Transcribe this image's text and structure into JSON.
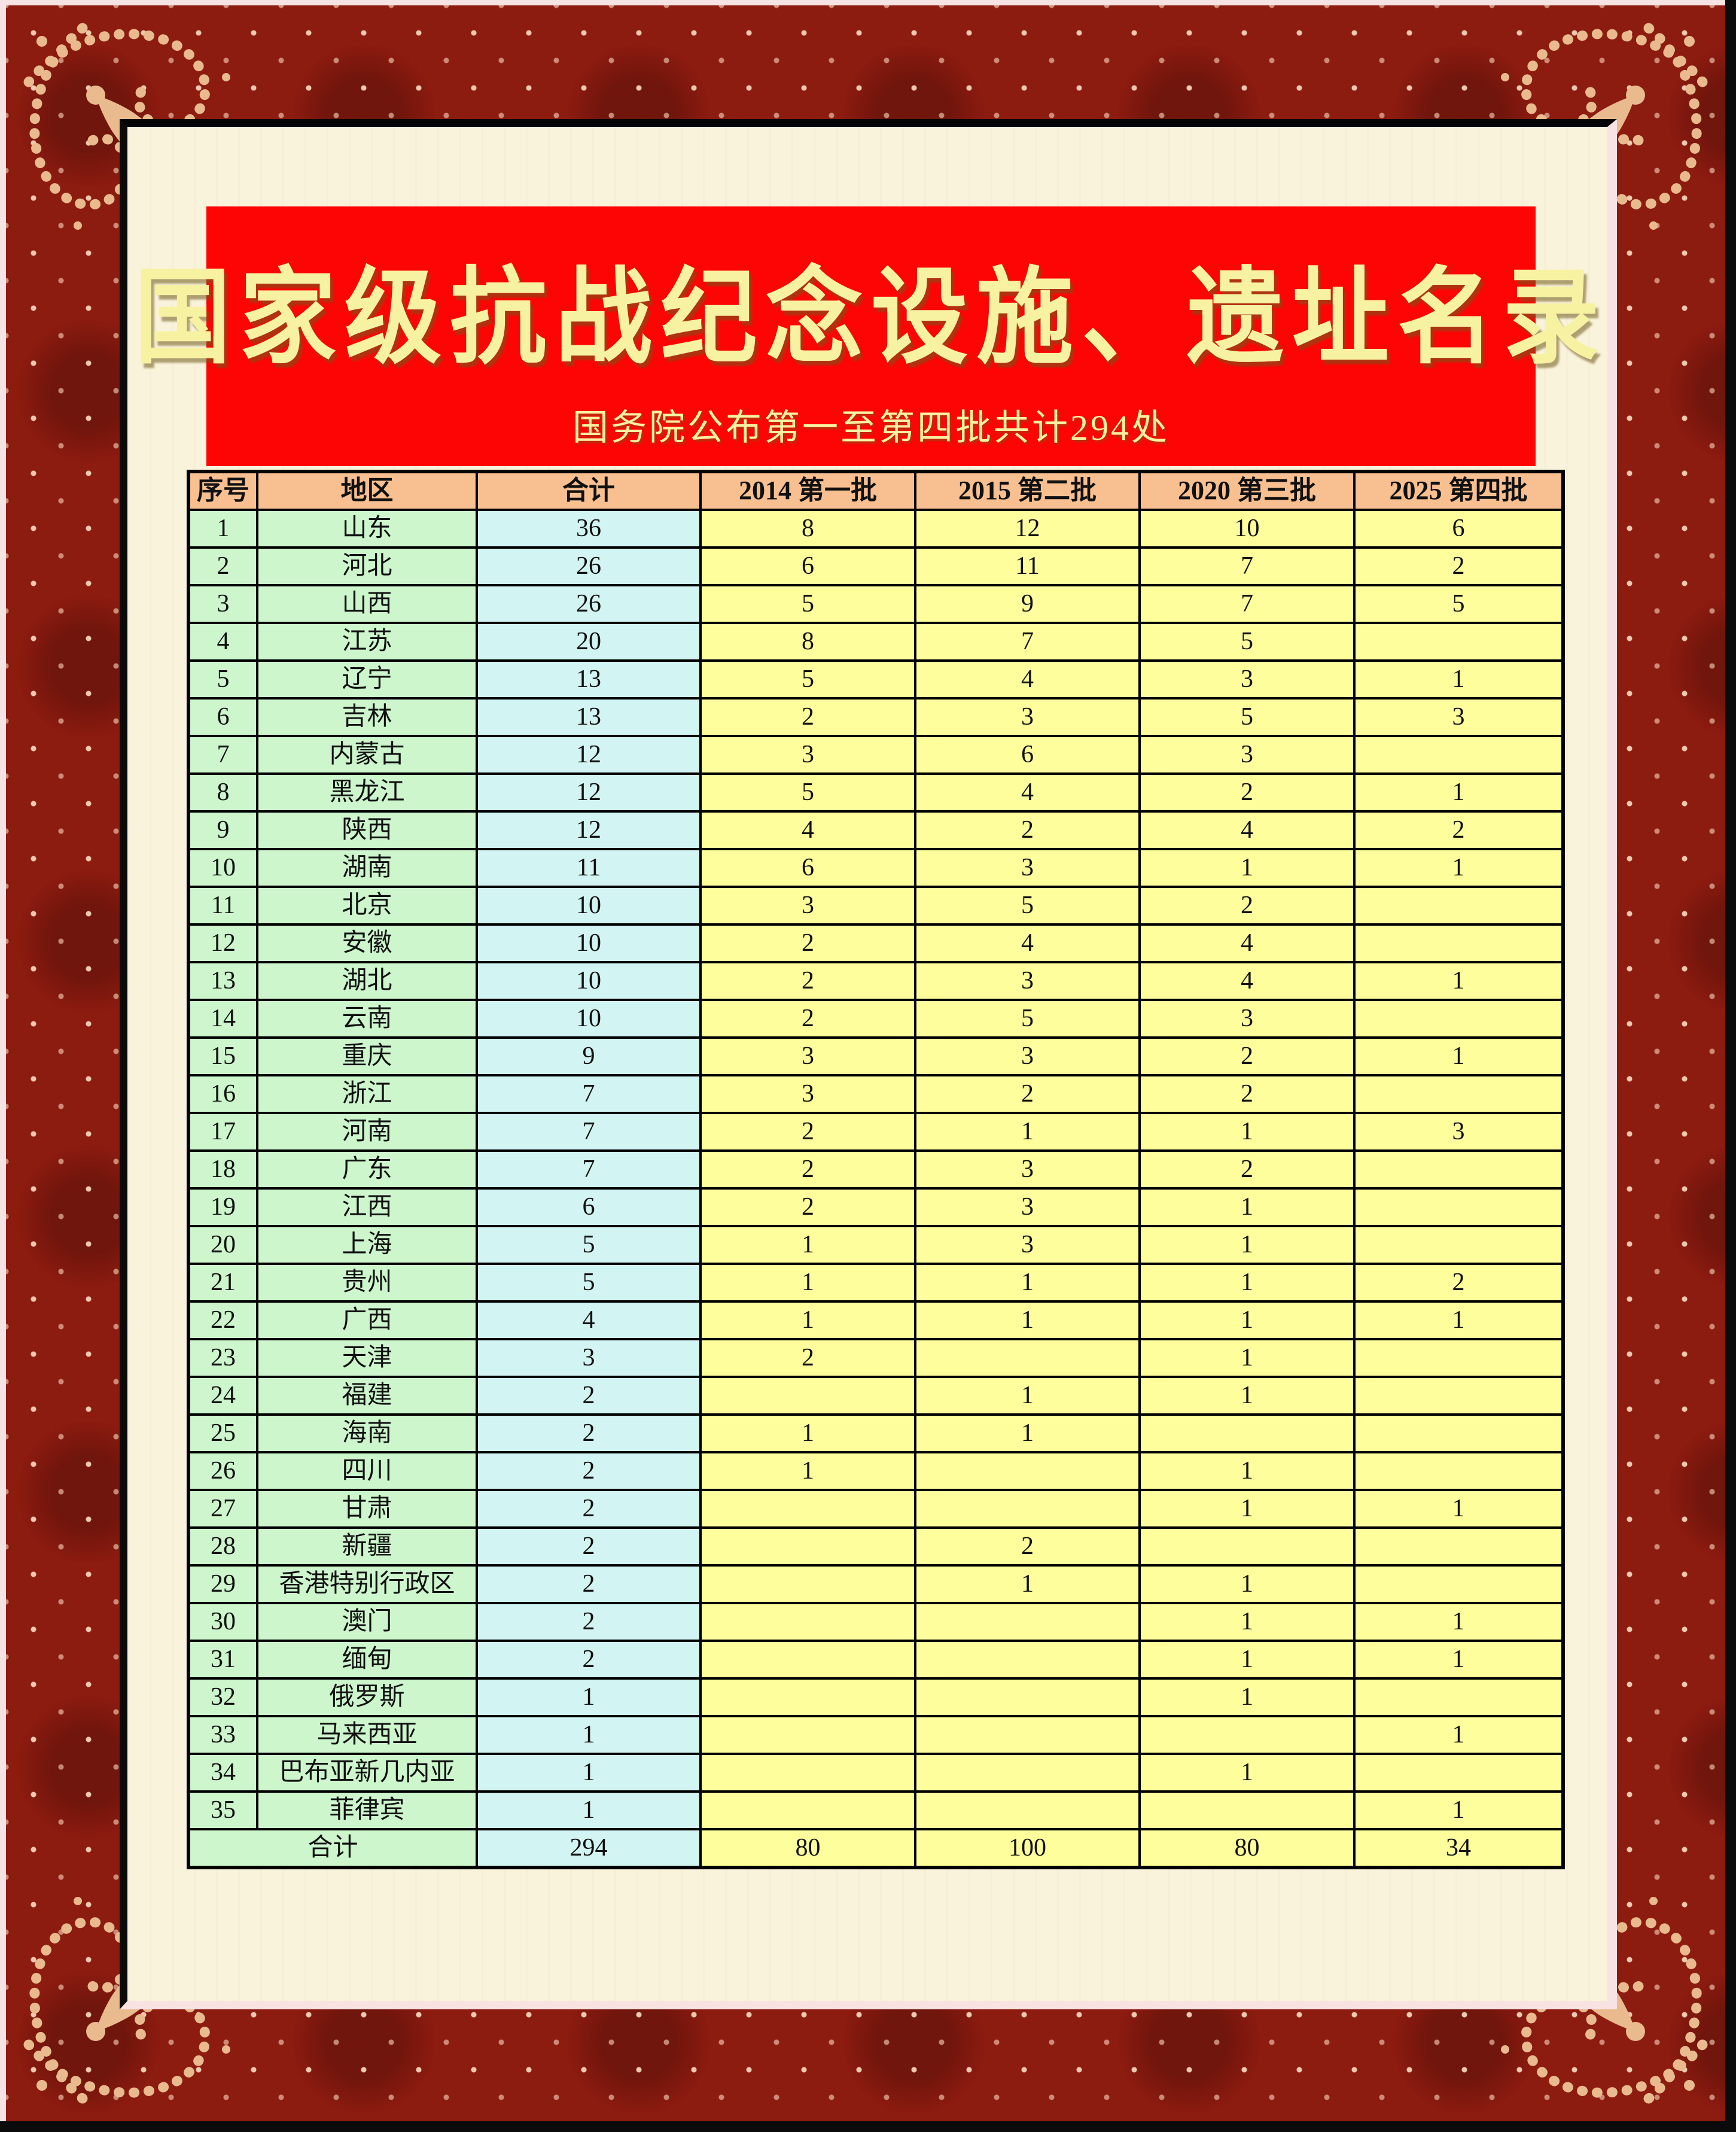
{
  "poster": {
    "title": "国家级抗战纪念设施、遗址名录",
    "subtitle": "国务院公布第一至第四批共计294处"
  },
  "colors": {
    "banner_red": "#FE0505",
    "title_yellow": "#F7F2A2",
    "header_bg": "#F8BF90",
    "row_green": "#CDF6CD",
    "row_cyan": "#D2F4F2",
    "row_yellow": "#FEFE9C",
    "frame_maroon": "#8C1B10",
    "mat_pink": "#F6E3E3",
    "paper_cream": "#FAF3DC",
    "ornament_gold": "#E9BA8E"
  },
  "table": {
    "columns": [
      "序号",
      "地区",
      "合计",
      "2014 第一批",
      "2015 第二批",
      "2020 第三批",
      "2025 第四批"
    ],
    "rows": [
      [
        "1",
        "山东",
        "36",
        "8",
        "12",
        "10",
        "6"
      ],
      [
        "2",
        "河北",
        "26",
        "6",
        "11",
        "7",
        "2"
      ],
      [
        "3",
        "山西",
        "26",
        "5",
        "9",
        "7",
        "5"
      ],
      [
        "4",
        "江苏",
        "20",
        "8",
        "7",
        "5",
        ""
      ],
      [
        "5",
        "辽宁",
        "13",
        "5",
        "4",
        "3",
        "1"
      ],
      [
        "6",
        "吉林",
        "13",
        "2",
        "3",
        "5",
        "3"
      ],
      [
        "7",
        "内蒙古",
        "12",
        "3",
        "6",
        "3",
        ""
      ],
      [
        "8",
        "黑龙江",
        "12",
        "5",
        "4",
        "2",
        "1"
      ],
      [
        "9",
        "陕西",
        "12",
        "4",
        "2",
        "4",
        "2"
      ],
      [
        "10",
        "湖南",
        "11",
        "6",
        "3",
        "1",
        "1"
      ],
      [
        "11",
        "北京",
        "10",
        "3",
        "5",
        "2",
        ""
      ],
      [
        "12",
        "安徽",
        "10",
        "2",
        "4",
        "4",
        ""
      ],
      [
        "13",
        "湖北",
        "10",
        "2",
        "3",
        "4",
        "1"
      ],
      [
        "14",
        "云南",
        "10",
        "2",
        "5",
        "3",
        ""
      ],
      [
        "15",
        "重庆",
        "9",
        "3",
        "3",
        "2",
        "1"
      ],
      [
        "16",
        "浙江",
        "7",
        "3",
        "2",
        "2",
        ""
      ],
      [
        "17",
        "河南",
        "7",
        "2",
        "1",
        "1",
        "3"
      ],
      [
        "18",
        "广东",
        "7",
        "2",
        "3",
        "2",
        ""
      ],
      [
        "19",
        "江西",
        "6",
        "2",
        "3",
        "1",
        ""
      ],
      [
        "20",
        "上海",
        "5",
        "1",
        "3",
        "1",
        ""
      ],
      [
        "21",
        "贵州",
        "5",
        "1",
        "1",
        "1",
        "2"
      ],
      [
        "22",
        "广西",
        "4",
        "1",
        "1",
        "1",
        "1"
      ],
      [
        "23",
        "天津",
        "3",
        "2",
        "",
        "1",
        ""
      ],
      [
        "24",
        "福建",
        "2",
        "",
        "1",
        "1",
        ""
      ],
      [
        "25",
        "海南",
        "2",
        "1",
        "1",
        "",
        ""
      ],
      [
        "26",
        "四川",
        "2",
        "1",
        "",
        "1",
        ""
      ],
      [
        "27",
        "甘肃",
        "2",
        "",
        "",
        "1",
        "1"
      ],
      [
        "28",
        "新疆",
        "2",
        "",
        "2",
        "",
        ""
      ],
      [
        "29",
        "香港特别行政区",
        "2",
        "",
        "1",
        "1",
        ""
      ],
      [
        "30",
        "澳门",
        "2",
        "",
        "",
        "1",
        "1"
      ],
      [
        "31",
        "缅甸",
        "2",
        "",
        "",
        "1",
        "1"
      ],
      [
        "32",
        "俄罗斯",
        "1",
        "",
        "",
        "1",
        ""
      ],
      [
        "33",
        "马来西亚",
        "1",
        "",
        "",
        "",
        "1"
      ],
      [
        "34",
        "巴布亚新几内亚",
        "1",
        "",
        "",
        "1",
        ""
      ],
      [
        "35",
        "菲律宾",
        "1",
        "",
        "",
        "",
        "1"
      ]
    ],
    "footer": {
      "label": "合计",
      "total": "294",
      "b1": "80",
      "b2": "100",
      "b3": "80",
      "b4": "34"
    }
  }
}
